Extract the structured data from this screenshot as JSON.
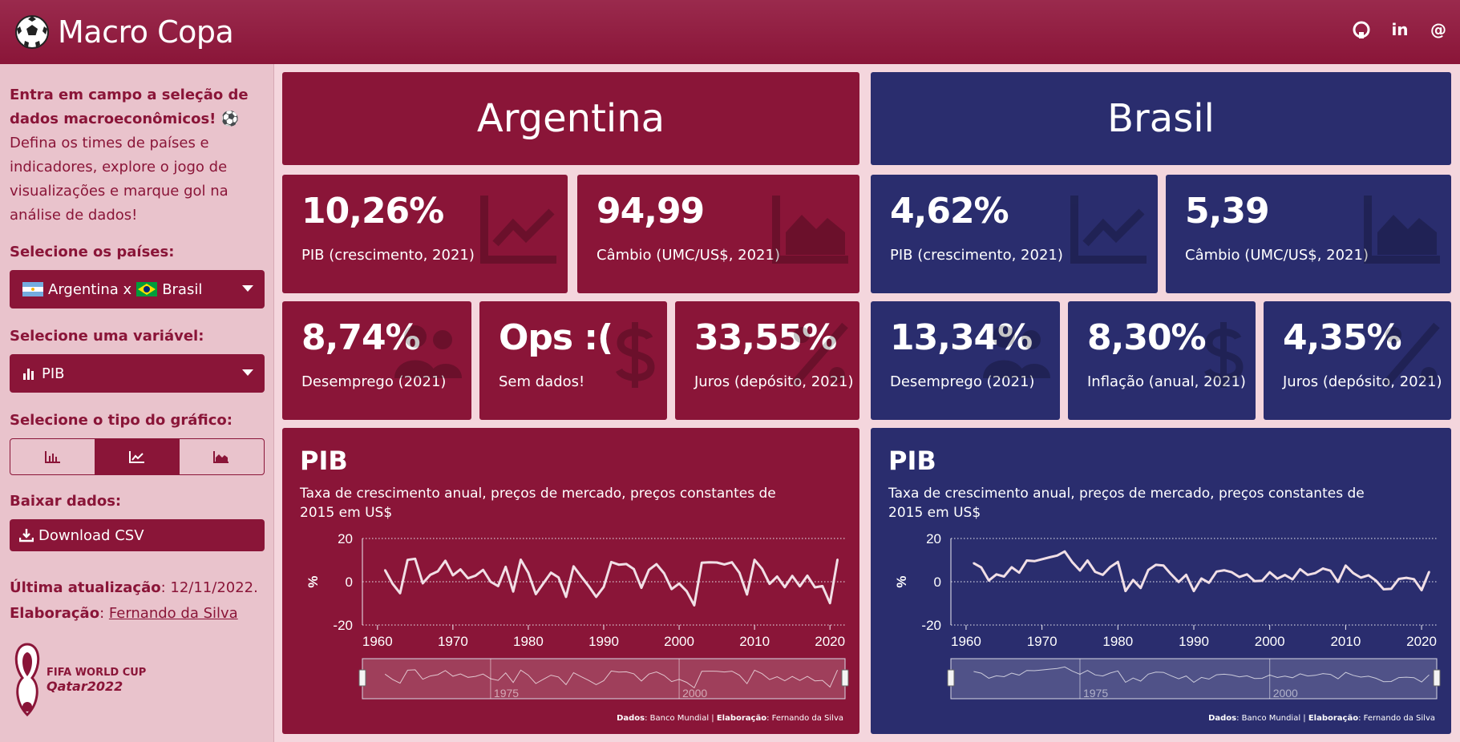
{
  "header": {
    "title": "Macro Copa",
    "links": [
      "github-icon",
      "linkedin-icon",
      "email-icon"
    ]
  },
  "sidebar": {
    "intro_bold": "Entra em campo a seleção de dados macroeconômicos! ⚽",
    "intro_text": "Defina os times de países e indicadores, explore o jogo de visualizações e marque gol na análise de dados!",
    "countries_label": "Selecione os países:",
    "countries": {
      "a": "Argentina x",
      "b": "Brasil"
    },
    "variable_label": "Selecione uma variável:",
    "variable_value": "PIB",
    "chart_type_label": "Selecione o tipo do gráfico:",
    "chart_types": [
      "bar-chart-icon",
      "line-chart-icon",
      "area-chart-icon"
    ],
    "chart_type_selected": 1,
    "download_label": "Baixar dados:",
    "download_button": "Download CSV",
    "updated_key": "Última atualização",
    "updated_value": ": 12/11/2022.",
    "author_key": "Elaboração",
    "author_sep": ": ",
    "author_value": "Fernando da Silva",
    "wc_line1": "FIFA WORLD CUP",
    "wc_line2": "Qatar2022"
  },
  "colors": {
    "argentina": "#8a1538",
    "brasil": "#2a2d6e",
    "sidebar": "#e9c3cc"
  },
  "argentina": {
    "name": "Argentina",
    "boxes": [
      {
        "value": "10,26%",
        "label": "PIB (crescimento, 2021)",
        "icon": "line-chart-icon"
      },
      {
        "value": "94,99",
        "label": "Câmbio (UMC/US$, 2021)",
        "icon": "area-chart-icon"
      },
      {
        "value": "8,74%",
        "label": "Desemprego (2021)",
        "icon": "users-icon"
      },
      {
        "value": "Ops :(",
        "label": "Sem dados!",
        "icon": "dollar-icon"
      },
      {
        "value": "33,55%",
        "label": "Juros (depósito, 2021)",
        "icon": "percent-icon"
      }
    ],
    "chart": {
      "title": "PIB",
      "subtitle": "Taxa de crescimento anual, preços de mercado, preços constantes de 2015 em US$",
      "source_k1": "Dados",
      "source_v1": ": Banco Mundial | ",
      "source_k2": "Elaboração",
      "source_v2": ": Fernando da Silva"
    }
  },
  "brasil": {
    "name": "Brasil",
    "boxes": [
      {
        "value": "4,62%",
        "label": "PIB (crescimento, 2021)",
        "icon": "line-chart-icon"
      },
      {
        "value": "5,39",
        "label": "Câmbio (UMC/US$, 2021)",
        "icon": "area-chart-icon"
      },
      {
        "value": "13,34%",
        "label": "Desemprego (2021)",
        "icon": "users-icon"
      },
      {
        "value": "8,30%",
        "label": "Inflação (anual, 2021)",
        "icon": "dollar-icon"
      },
      {
        "value": "4,35%",
        "label": "Juros (depósito, 2021)",
        "icon": "percent-icon"
      }
    ],
    "chart": {
      "title": "PIB",
      "subtitle": "Taxa de crescimento anual, preços de mercado, preços constantes de 2015 em US$",
      "source_k1": "Dados",
      "source_v1": ": Banco Mundial | ",
      "source_k2": "Elaboração",
      "source_v2": ": Fernando da Silva"
    }
  },
  "chart_data": [
    {
      "type": "line",
      "ylabel": "%",
      "ylim": [
        -20,
        20
      ],
      "yticks": [
        20,
        0,
        -20
      ],
      "xlim": [
        1958,
        2022
      ],
      "xticks": [
        1960,
        1970,
        1980,
        1990,
        2000,
        2010,
        2020
      ],
      "navigator_ticks": [
        "1975",
        "2000"
      ],
      "grid": "horizontal-dotted",
      "x": [
        1961,
        1962,
        1963,
        1964,
        1965,
        1966,
        1967,
        1968,
        1969,
        1970,
        1971,
        1972,
        1973,
        1974,
        1975,
        1976,
        1977,
        1978,
        1979,
        1980,
        1981,
        1982,
        1983,
        1984,
        1985,
        1986,
        1987,
        1988,
        1989,
        1990,
        1991,
        1992,
        1993,
        1994,
        1995,
        1996,
        1997,
        1998,
        1999,
        2000,
        2001,
        2002,
        2003,
        2004,
        2005,
        2006,
        2007,
        2008,
        2009,
        2010,
        2011,
        2012,
        2013,
        2014,
        2015,
        2016,
        2017,
        2018,
        2019,
        2020,
        2021
      ],
      "series": [
        {
          "values": [
            5.4,
            -0.9,
            -5.3,
            10.1,
            10.6,
            -0.7,
            3.2,
            4.8,
            9.7,
            3.0,
            5.7,
            1.6,
            2.8,
            5.5,
            0.0,
            -2.0,
            6.9,
            -4.5,
            10.2,
            4.2,
            -5.7,
            -0.7,
            4.2,
            2.0,
            -7.0,
            7.1,
            2.5,
            -2.0,
            -7.0,
            -2.4,
            9.1,
            7.9,
            8.2,
            5.8,
            -2.8,
            5.5,
            8.1,
            3.9,
            -3.4,
            -0.8,
            -4.4,
            -10.9,
            8.8,
            9.0,
            8.9,
            8.0,
            9.0,
            4.1,
            -5.9,
            10.1,
            6.0,
            -1.0,
            2.4,
            -2.5,
            2.7,
            -2.1,
            2.8,
            -2.6,
            -2.0,
            -9.9,
            10.3
          ]
        }
      ]
    },
    {
      "type": "line",
      "ylabel": "%",
      "ylim": [
        -20,
        20
      ],
      "yticks": [
        20,
        0,
        -20
      ],
      "xlim": [
        1958,
        2022
      ],
      "xticks": [
        1960,
        1970,
        1980,
        1990,
        2000,
        2010,
        2020
      ],
      "navigator_ticks": [
        "1975",
        "2000"
      ],
      "grid": "horizontal-dotted",
      "x": [
        1961,
        1962,
        1963,
        1964,
        1965,
        1966,
        1967,
        1968,
        1969,
        1970,
        1971,
        1972,
        1973,
        1974,
        1975,
        1976,
        1977,
        1978,
        1979,
        1980,
        1981,
        1982,
        1983,
        1984,
        1985,
        1986,
        1987,
        1988,
        1989,
        1990,
        1991,
        1992,
        1993,
        1994,
        1995,
        1996,
        1997,
        1998,
        1999,
        2000,
        2001,
        2002,
        2003,
        2004,
        2005,
        2006,
        2007,
        2008,
        2009,
        2010,
        2011,
        2012,
        2013,
        2014,
        2015,
        2016,
        2017,
        2018,
        2019,
        2020,
        2021
      ],
      "series": [
        {
          "values": [
            8.6,
            6.6,
            0.6,
            3.4,
            2.4,
            6.7,
            4.2,
            9.8,
            9.5,
            10.4,
            11.3,
            12.1,
            14.0,
            9.0,
            5.2,
            9.8,
            4.6,
            3.2,
            6.8,
            9.2,
            -4.3,
            0.8,
            -2.9,
            5.4,
            7.8,
            7.5,
            3.5,
            -0.1,
            3.2,
            -4.3,
            1.5,
            -0.5,
            4.7,
            5.3,
            4.4,
            2.2,
            3.4,
            0.3,
            0.5,
            4.4,
            1.4,
            3.1,
            1.1,
            5.8,
            3.2,
            4.0,
            6.1,
            5.1,
            -0.1,
            7.5,
            4.0,
            1.9,
            3.0,
            0.5,
            -3.5,
            -3.3,
            1.3,
            1.8,
            1.2,
            -3.9,
            4.6
          ]
        }
      ]
    }
  ]
}
